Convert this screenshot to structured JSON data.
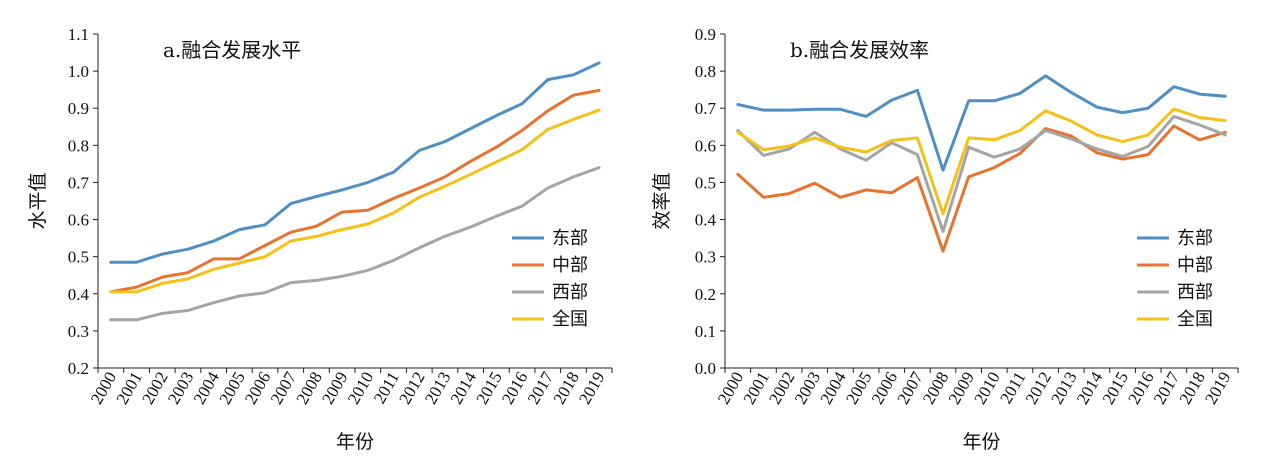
{
  "chart_data": [
    {
      "type": "line",
      "title": "a.融合发展水平",
      "xlabel": "年份",
      "ylabel": "水平值",
      "ylim": [
        0.2,
        1.1
      ],
      "yticks": [
        "0.2",
        "0.3",
        "0.4",
        "0.5",
        "0.6",
        "0.7",
        "0.8",
        "0.9",
        "1.0",
        "1.1"
      ],
      "categories": [
        "2000",
        "2001",
        "2002",
        "2003",
        "2004",
        "2005",
        "2006",
        "2007",
        "2008",
        "2009",
        "2010",
        "2011",
        "2012",
        "2013",
        "2014",
        "2015",
        "2016",
        "2017",
        "2018",
        "2019"
      ],
      "legend_position": "right",
      "series": [
        {
          "name": "东部",
          "color": "#4f8fc4",
          "values": [
            0.485,
            0.485,
            0.507,
            0.52,
            0.542,
            0.573,
            0.586,
            0.643,
            0.662,
            0.68,
            0.7,
            0.728,
            0.786,
            0.81,
            0.845,
            0.88,
            0.912,
            0.977,
            0.99,
            1.022
          ]
        },
        {
          "name": "中部",
          "color": "#e7732f",
          "values": [
            0.405,
            0.418,
            0.445,
            0.457,
            0.494,
            0.494,
            0.53,
            0.566,
            0.582,
            0.62,
            0.625,
            0.657,
            0.685,
            0.715,
            0.757,
            0.795,
            0.84,
            0.893,
            0.935,
            0.948
          ]
        },
        {
          "name": "西部",
          "color": "#a5a5a5",
          "values": [
            0.33,
            0.33,
            0.347,
            0.355,
            0.376,
            0.394,
            0.403,
            0.43,
            0.436,
            0.447,
            0.463,
            0.49,
            0.524,
            0.555,
            0.58,
            0.609,
            0.636,
            0.685,
            0.715,
            0.74
          ]
        },
        {
          "name": "全国",
          "color": "#f5c017",
          "values": [
            0.405,
            0.405,
            0.428,
            0.44,
            0.466,
            0.483,
            0.5,
            0.542,
            0.555,
            0.573,
            0.588,
            0.618,
            0.66,
            0.69,
            0.722,
            0.755,
            0.788,
            0.843,
            0.87,
            0.895
          ]
        }
      ]
    },
    {
      "type": "line",
      "title": "b.融合发展效率",
      "xlabel": "年份",
      "ylabel": "效率值",
      "ylim": [
        0.0,
        0.9
      ],
      "yticks": [
        "0.0",
        "0.1",
        "0.2",
        "0.3",
        "0.4",
        "0.5",
        "0.6",
        "0.7",
        "0.8",
        "0.9"
      ],
      "categories": [
        "2000",
        "2001",
        "2002",
        "2003",
        "2004",
        "2005",
        "2006",
        "2007",
        "2008",
        "2009",
        "2010",
        "2011",
        "2012",
        "2013",
        "2014",
        "2015",
        "2016",
        "2017",
        "2018",
        "2019"
      ],
      "legend_position": "right",
      "series": [
        {
          "name": "东部",
          "color": "#4f8fc4",
          "values": [
            0.71,
            0.695,
            0.695,
            0.697,
            0.697,
            0.678,
            0.722,
            0.748,
            0.533,
            0.72,
            0.72,
            0.74,
            0.787,
            0.742,
            0.703,
            0.688,
            0.7,
            0.758,
            0.738,
            0.732
          ]
        },
        {
          "name": "中部",
          "color": "#e7732f",
          "values": [
            0.522,
            0.46,
            0.47,
            0.498,
            0.46,
            0.48,
            0.472,
            0.513,
            0.315,
            0.515,
            0.54,
            0.578,
            0.645,
            0.625,
            0.58,
            0.563,
            0.575,
            0.652,
            0.615,
            0.635
          ]
        },
        {
          "name": "西部",
          "color": "#a5a5a5",
          "values": [
            0.64,
            0.573,
            0.59,
            0.635,
            0.59,
            0.56,
            0.607,
            0.575,
            0.368,
            0.595,
            0.568,
            0.59,
            0.64,
            0.617,
            0.59,
            0.57,
            0.597,
            0.678,
            0.655,
            0.628
          ]
        },
        {
          "name": "全国",
          "color": "#f5c017",
          "values": [
            0.635,
            0.588,
            0.598,
            0.62,
            0.595,
            0.582,
            0.613,
            0.62,
            0.415,
            0.62,
            0.615,
            0.64,
            0.693,
            0.665,
            0.628,
            0.61,
            0.628,
            0.698,
            0.675,
            0.667
          ]
        }
      ]
    }
  ]
}
